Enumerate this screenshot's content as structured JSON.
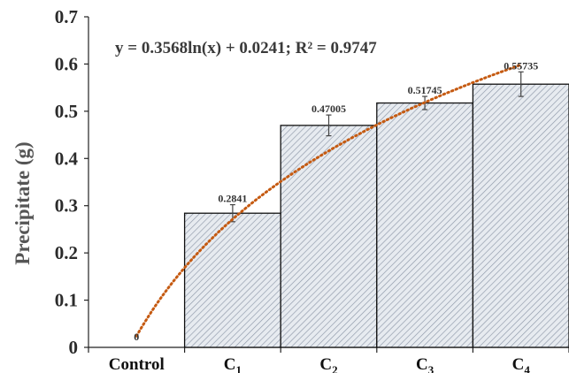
{
  "chart_data": {
    "type": "bar",
    "categories": [
      {
        "main": "Control",
        "sub": ""
      },
      {
        "main": "C",
        "sub": "1"
      },
      {
        "main": "C",
        "sub": "2"
      },
      {
        "main": "C",
        "sub": "3"
      },
      {
        "main": "C",
        "sub": "4"
      }
    ],
    "values": [
      0,
      0.2841,
      0.47005,
      0.51745,
      0.55735
    ],
    "errors": [
      0,
      0.018,
      0.022,
      0.014,
      0.026
    ],
    "data_labels": [
      "0",
      "0.2841",
      "0.47005",
      "0.51745",
      "0.55735"
    ],
    "ylabel": "Precipitate (g)",
    "ylim": [
      0,
      0.7
    ],
    "yticks": [
      {
        "v": 0,
        "label": "0"
      },
      {
        "v": 0.1,
        "label": "0.1"
      },
      {
        "v": 0.2,
        "label": "0.2"
      },
      {
        "v": 0.3,
        "label": "0.3"
      },
      {
        "v": 0.4,
        "label": "0.4"
      },
      {
        "v": 0.5,
        "label": "0.5"
      },
      {
        "v": 0.6,
        "label": "0.6"
      },
      {
        "v": 0.7,
        "label": "0.7"
      }
    ],
    "trendline": {
      "type": "logarithmic",
      "a": 0.3568,
      "b": 0.0241,
      "equation": "y = 0.3568ln(x) + 0.0241; R² = 0.9747",
      "color": "#c55a11"
    },
    "grid": false,
    "bar_fill": "#e7ebf0",
    "bar_hatch": "#8d97a8",
    "bar_edge": "#111111"
  }
}
